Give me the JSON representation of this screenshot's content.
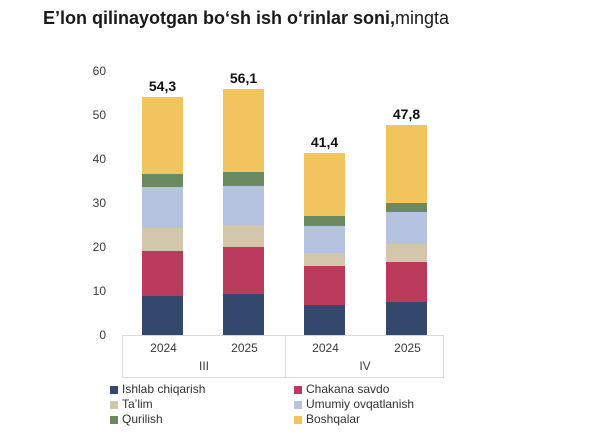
{
  "title": {
    "bold": "Eʼlon qilinayotgan boʻsh ish oʻrinlar soni,",
    "regular": "mingta"
  },
  "chart_data": {
    "type": "bar",
    "stacked": true,
    "title": "Eʼlon qilinayotgan boʻsh ish oʻrinlar soni, mingta",
    "xlabel": "",
    "ylabel": "",
    "ylim": [
      0,
      60
    ],
    "yticks": [
      0,
      10,
      20,
      30,
      40,
      50,
      60
    ],
    "grid": false,
    "legend_position": "bottom",
    "groups": [
      {
        "label": "III",
        "years": [
          "2024",
          "2025"
        ]
      },
      {
        "label": "IV",
        "years": [
          "2024",
          "2025"
        ]
      }
    ],
    "categories": [
      "2024 (III)",
      "2025 (III)",
      "2024 (IV)",
      "2025 (IV)"
    ],
    "series": [
      {
        "name": "Ishlab chiqarish",
        "color": "#33486C",
        "values": [
          9.0,
          9.3,
          6.8,
          7.6
        ]
      },
      {
        "name": "Chakana savdo",
        "color": "#BA3A5B",
        "values": [
          10.1,
          10.8,
          8.9,
          9.1
        ]
      },
      {
        "name": "Taʼlim",
        "color": "#D2C7AB",
        "values": [
          5.3,
          5.0,
          2.9,
          4.0
        ]
      },
      {
        "name": "Umumiy ovqatlanish",
        "color": "#B5C3E0",
        "values": [
          9.4,
          8.8,
          6.2,
          7.4
        ]
      },
      {
        "name": "Qurilish",
        "color": "#6B8A5F",
        "values": [
          3.0,
          3.2,
          2.3,
          2.0
        ]
      },
      {
        "name": "Boshqalar",
        "color": "#F2C45E",
        "values": [
          17.5,
          19.0,
          14.3,
          17.7
        ]
      }
    ],
    "totals_display": [
      "54,3",
      "56,1",
      "41,4",
      "47,8"
    ],
    "legend_columns": [
      [
        "Ishlab chiqarish",
        "Taʼlim",
        "Qurilish"
      ],
      [
        "Chakana savdo",
        "Umumiy ovqatlanish",
        "Boshqalar"
      ]
    ]
  }
}
